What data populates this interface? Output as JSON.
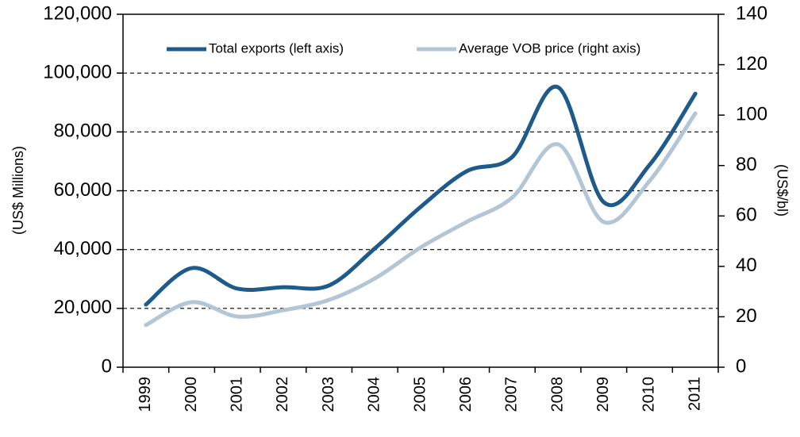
{
  "chart_data": {
    "type": "line",
    "y_label": "(US$ Millions)",
    "y2_label": "(US$/bl)",
    "categories": [
      "1999",
      "2000",
      "2001",
      "2002",
      "2003",
      "2004",
      "2005",
      "2006",
      "2007",
      "2008",
      "2009",
      "2010",
      "2011"
    ],
    "series": [
      {
        "name": "Total exports (left axis)",
        "color": "#1f5b8a",
        "values": [
          21300,
          33700,
          26700,
          27200,
          27800,
          40400,
          54500,
          66600,
          71500,
          95200,
          56100,
          68800,
          93000
        ]
      },
      {
        "name": "Average VOB price  (right axis)",
        "color": "#b3c6d6",
        "axis": "y2",
        "values": [
          16.7,
          25.8,
          20.1,
          22.6,
          26.7,
          35.2,
          47.5,
          57.6,
          67.3,
          88.4,
          57.6,
          73.9,
          100.7
        ]
      }
    ],
    "ylim": [
      0,
      120000
    ],
    "yticks": [
      0,
      {
        "value": 20000,
        "label": "20,000"
      },
      {
        "value": 40000,
        "label": "40,000"
      },
      {
        "value": 60000,
        "label": "60,000"
      },
      {
        "value": 80000,
        "label": "80,000"
      },
      {
        "value": 100000,
        "label": "100,000"
      },
      {
        "value": 120000,
        "label": "120,000"
      }
    ],
    "y2lim": [
      0,
      140
    ],
    "y2ticks": [
      0,
      20,
      40,
      60,
      80,
      100,
      120,
      140
    ],
    "grid": true,
    "legend": "top"
  }
}
